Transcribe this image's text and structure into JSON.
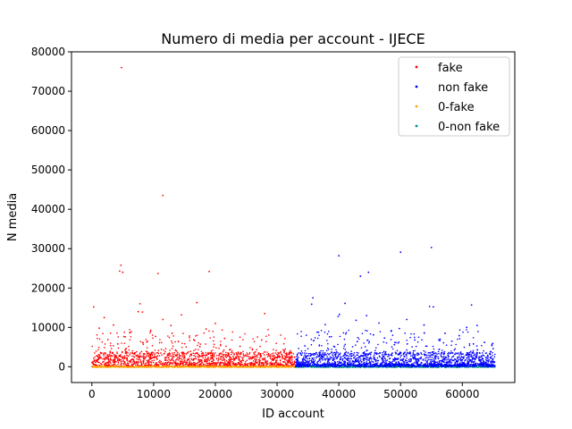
{
  "chart_data": {
    "type": "scatter",
    "title": "Numero di media per account - IJECE",
    "xlabel": "ID account",
    "ylabel": "N media",
    "xlim": [
      -3300,
      68500
    ],
    "ylim": [
      -4000,
      80000
    ],
    "xticks": [
      0,
      10000,
      20000,
      30000,
      40000,
      50000,
      60000
    ],
    "yticks": [
      0,
      10000,
      20000,
      30000,
      40000,
      50000,
      60000,
      70000,
      80000
    ],
    "grid": false,
    "legend_position": "top-right",
    "series": [
      {
        "name": "fake",
        "color": "#ff0000",
        "x_range": [
          0,
          33000
        ],
        "dense_band": [
          0,
          3500
        ],
        "points": [
          [
            4800,
            76000
          ],
          [
            11500,
            43500
          ],
          [
            4700,
            25800
          ],
          [
            4500,
            24300
          ],
          [
            5000,
            24000
          ],
          [
            10700,
            23700
          ],
          [
            19000,
            24200
          ],
          [
            300,
            15200
          ],
          [
            7500,
            14000
          ],
          [
            8200,
            13900
          ],
          [
            7800,
            16000
          ],
          [
            11500,
            12000
          ],
          [
            17000,
            16300
          ],
          [
            20000,
            11000
          ],
          [
            2000,
            12500
          ],
          [
            14500,
            13200
          ],
          [
            28000,
            13500
          ],
          [
            3500,
            10600
          ],
          [
            9500,
            9000
          ],
          [
            13000,
            8500
          ],
          [
            6200,
            8700
          ],
          [
            15800,
            7800
          ],
          [
            18500,
            9600
          ],
          [
            21500,
            7200
          ],
          [
            27500,
            6800
          ],
          [
            1200,
            9800
          ],
          [
            12800,
            10500
          ],
          [
            16500,
            6900
          ],
          [
            5400,
            7600
          ],
          [
            8900,
            6300
          ],
          [
            19800,
            5700
          ],
          [
            24000,
            5200
          ],
          [
            26000,
            4500
          ],
          [
            31000,
            4300
          ],
          [
            2600,
            6900
          ],
          [
            10300,
            7700
          ],
          [
            4200,
            5800
          ],
          [
            14000,
            6400
          ],
          [
            17500,
            5100
          ],
          [
            22700,
            4000
          ]
        ]
      },
      {
        "name": "non fake",
        "color": "#0000ff",
        "x_range": [
          33000,
          65300
        ],
        "dense_band": [
          0,
          3500
        ],
        "points": [
          [
            55000,
            30300
          ],
          [
            50000,
            29100
          ],
          [
            40000,
            28200
          ],
          [
            44800,
            24000
          ],
          [
            43500,
            23000
          ],
          [
            35800,
            17500
          ],
          [
            41000,
            16100
          ],
          [
            61500,
            15700
          ],
          [
            54700,
            15300
          ],
          [
            55300,
            15200
          ],
          [
            40100,
            13300
          ],
          [
            39900,
            12800
          ],
          [
            44500,
            13000
          ],
          [
            35600,
            15900
          ],
          [
            42800,
            11800
          ],
          [
            46500,
            11100
          ],
          [
            51000,
            12000
          ],
          [
            49800,
            9700
          ],
          [
            59500,
            7900
          ],
          [
            62400,
            10500
          ],
          [
            60700,
            10000
          ],
          [
            37800,
            10700
          ],
          [
            57200,
            8500
          ],
          [
            53800,
            10600
          ],
          [
            48500,
            9200
          ],
          [
            63600,
            6200
          ],
          [
            64800,
            5400
          ],
          [
            38500,
            7600
          ],
          [
            45600,
            8100
          ],
          [
            52300,
            6800
          ],
          [
            47400,
            7300
          ],
          [
            36500,
            8800
          ],
          [
            58300,
            6500
          ],
          [
            65000,
            4600
          ],
          [
            39200,
            5200
          ],
          [
            61800,
            5800
          ],
          [
            43000,
            6400
          ],
          [
            56400,
            7000
          ],
          [
            34500,
            5300
          ],
          [
            49000,
            5600
          ]
        ]
      },
      {
        "name": "0-fake",
        "color": "#ffa500",
        "x_range": [
          0,
          33000
        ],
        "value": 0
      },
      {
        "name": "0-non fake",
        "color": "#008b8b",
        "x_range": [
          33000,
          65300
        ],
        "value": 0
      }
    ]
  }
}
